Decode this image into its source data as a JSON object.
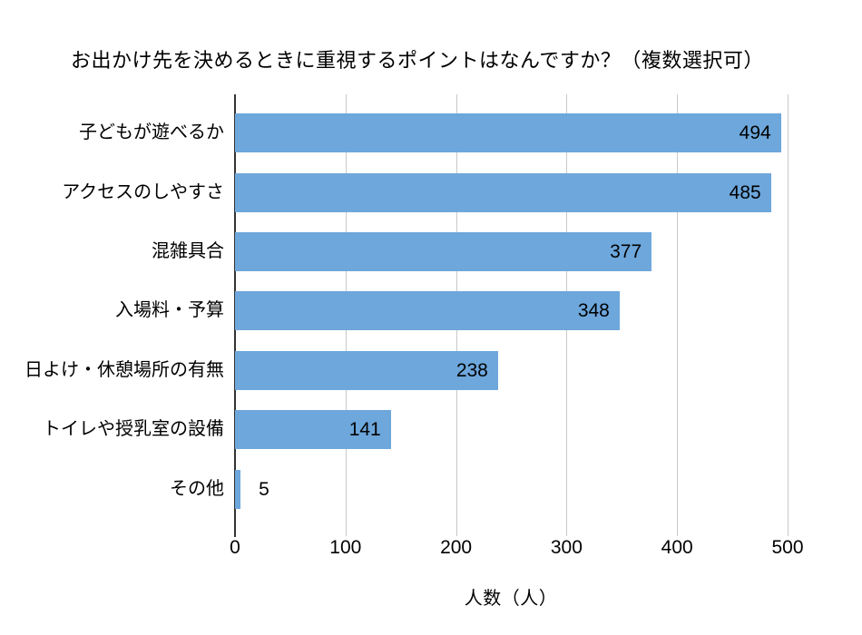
{
  "chart_data": {
    "type": "bar",
    "orientation": "horizontal",
    "title": "お出かけ先を決めるときに重視するポイントはなんですか？（複数選択可）",
    "categories": [
      "子どもが遊べるか",
      "アクセスのしやすさ",
      "混雑具合",
      "入場料・予算",
      "日よけ・休憩場所の有無",
      "トイレや授乳室の設備",
      "その他"
    ],
    "values": [
      494,
      485,
      377,
      348,
      238,
      141,
      5
    ],
    "xlabel": "人数（人）",
    "ylabel": "",
    "xlim": [
      0,
      500
    ],
    "xticks": [
      0,
      100,
      200,
      300,
      400,
      500
    ],
    "grid": true,
    "legend": false,
    "data_labels": true,
    "colors": {
      "bar": "#6da7dc",
      "text": "#000000",
      "gridline": "#c9c9c9",
      "axis_line": "#333333",
      "background": "#ffffff"
    }
  }
}
